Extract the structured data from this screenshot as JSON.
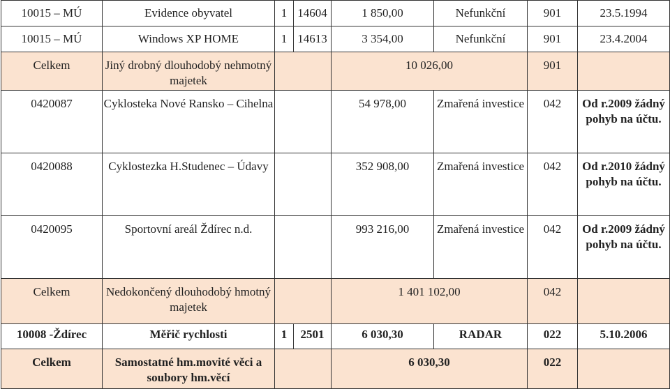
{
  "rows": {
    "r1": {
      "c1": "10015 – MÚ",
      "c2": "Evidence obyvatel",
      "c3": "1",
      "c4": "14604",
      "c5": "1 850,00",
      "c6": "Nefunkční",
      "c7": "901",
      "c8": "23.5.1994"
    },
    "r2": {
      "c1": "10015 – MÚ",
      "c2": "Windows XP HOME",
      "c3": "1",
      "c4": "14613",
      "c5": "3 354,00",
      "c6": "Nefunkční",
      "c7": "901",
      "c8": "23.4.2004"
    },
    "r3": {
      "label": "Celkem",
      "desc": "Jiný drobný dlouhodobý nehmotný majetek",
      "sum": "10 026,00",
      "account": "901"
    },
    "r4": {
      "c1": "0420087",
      "c2": "Cyklosteka Nové Ransko – Cihelna",
      "c5": "54 978,00",
      "c6": "Zmařená investice",
      "c7": "042",
      "c8": "Od r.2009 žádný pohyb na účtu."
    },
    "r5": {
      "c1": "0420088",
      "c2": "Cyklostezka H.Studenec – Údavy",
      "c5": "352 908,00",
      "c6": "Zmařená investice",
      "c7": "042",
      "c8": "Od r.2010 žádný pohyb na účtu."
    },
    "r6": {
      "c1": "0420095",
      "c2": "Sportovní areál Ždírec n.d.",
      "c5": "993 216,00",
      "c6": "Zmařená investice",
      "c7": "042",
      "c8": "Od r.2009 žádný pohyb na účtu."
    },
    "r7": {
      "label": "Celkem",
      "desc": "Nedokončený dlouhodobý hmotný majetek",
      "sum": "1 401 102,00",
      "account": "042"
    },
    "r8": {
      "c1": "10008 -Ždírec",
      "c2": "Měřič rychlosti",
      "c3": "1",
      "c4": "2501",
      "c5": "6 030,30",
      "c6": "RADAR",
      "c7": "022",
      "c8": "5.10.2006"
    },
    "r9": {
      "label": "Celkem",
      "desc": "Samostatné hm.movité věci a soubory hm.věcí",
      "sum": "6 030,30",
      "account": "022"
    }
  },
  "colors": {
    "shade": "#fbe3d0",
    "border": "#333333",
    "text": "#222222"
  }
}
